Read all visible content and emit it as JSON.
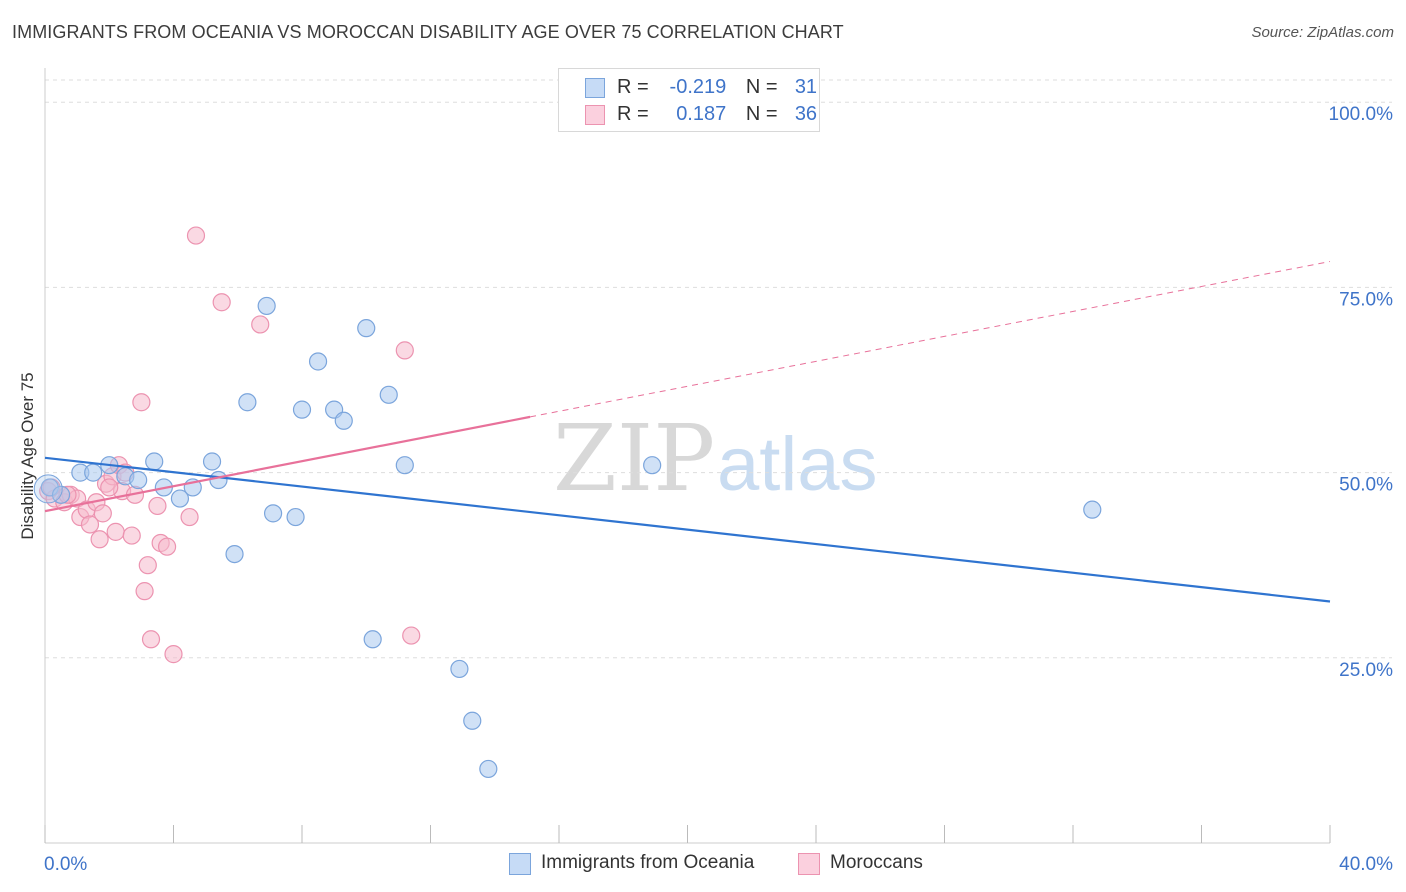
{
  "header": {
    "title": "IMMIGRANTS FROM OCEANIA VS MOROCCAN DISABILITY AGE OVER 75 CORRELATION CHART",
    "source": "Source: ZipAtlas.com"
  },
  "watermark": {
    "part1": "ZIP",
    "part2": "atlas"
  },
  "legend": {
    "rows": [
      {
        "r_label": "R =",
        "r_value": "-0.219",
        "n_label": "N =",
        "n_value": "31"
      },
      {
        "r_label": "R =",
        "r_value": " 0.187",
        "n_label": "N =",
        "n_value": "36"
      }
    ]
  },
  "bottom_legend": {
    "series1": "Immigrants from Oceania",
    "series2": "Moroccans"
  },
  "colors": {
    "series1_fill": "#a9c8ee",
    "series1_stroke": "#7ba5dc",
    "series1_line": "#2f74d0",
    "series2_fill": "#f6b9cc",
    "series2_stroke": "#ec93b0",
    "series2_line": "#e8719a",
    "grid": "#dddddd",
    "tick_label": "#3f74c9"
  },
  "chart_data": {
    "type": "scatter",
    "title": "IMMIGRANTS FROM OCEANIA VS MOROCCAN DISABILITY AGE OVER 75 CORRELATION CHART",
    "xlabel": "",
    "ylabel": "Disability Age Over 75",
    "xlim": [
      0,
      40
    ],
    "ylim": [
      0,
      103
    ],
    "x_tick_labels": [
      "0.0%",
      "40.0%"
    ],
    "y_ticks": [
      25,
      50,
      75,
      100
    ],
    "y_tick_labels": [
      "25.0%",
      "50.0%",
      "75.0%",
      "100.0%"
    ],
    "grid": true,
    "legend_position": "top-center",
    "series": [
      {
        "name": "Immigrants from Oceania",
        "r": -0.219,
        "n": 31,
        "trend": {
          "x": [
            0,
            40
          ],
          "y": [
            52.0,
            32.6
          ],
          "dashed_after": null
        },
        "points": [
          [
            0.15,
            48.0
          ],
          [
            0.5,
            47.0
          ],
          [
            1.1,
            50.0
          ],
          [
            1.5,
            50.0
          ],
          [
            2.0,
            51.0
          ],
          [
            2.5,
            49.5
          ],
          [
            2.9,
            49.0
          ],
          [
            3.4,
            51.5
          ],
          [
            3.7,
            48.0
          ],
          [
            4.2,
            46.5
          ],
          [
            4.6,
            48.0
          ],
          [
            5.2,
            51.5
          ],
          [
            5.4,
            49.0
          ],
          [
            5.9,
            39.0
          ],
          [
            6.3,
            59.5
          ],
          [
            6.9,
            72.5
          ],
          [
            7.1,
            44.5
          ],
          [
            7.8,
            44.0
          ],
          [
            8.0,
            58.5
          ],
          [
            8.5,
            65.0
          ],
          [
            9.0,
            58.5
          ],
          [
            9.3,
            57.0
          ],
          [
            10.0,
            69.5
          ],
          [
            10.2,
            27.5
          ],
          [
            10.7,
            60.5
          ],
          [
            11.2,
            51.0
          ],
          [
            12.9,
            23.5
          ],
          [
            13.3,
            16.5
          ],
          [
            13.8,
            10.0
          ],
          [
            18.9,
            51.0
          ],
          [
            32.6,
            45.0
          ]
        ]
      },
      {
        "name": "Moroccans",
        "r": 0.187,
        "n": 36,
        "trend": {
          "x": [
            0,
            40
          ],
          "y": [
            44.8,
            78.5
          ],
          "solid_until_x": 15.1
        },
        "points": [
          [
            0.1,
            47.5
          ],
          [
            0.3,
            46.5
          ],
          [
            0.6,
            46.0
          ],
          [
            0.8,
            47.0
          ],
          [
            1.0,
            46.5
          ],
          [
            1.1,
            44.0
          ],
          [
            1.3,
            45.0
          ],
          [
            1.4,
            43.0
          ],
          [
            1.6,
            46.0
          ],
          [
            1.7,
            41.0
          ],
          [
            1.8,
            44.5
          ],
          [
            1.9,
            48.5
          ],
          [
            2.1,
            49.5
          ],
          [
            2.2,
            42.0
          ],
          [
            2.3,
            51.0
          ],
          [
            2.4,
            47.5
          ],
          [
            2.5,
            50.0
          ],
          [
            2.7,
            41.5
          ],
          [
            2.8,
            47.0
          ],
          [
            3.0,
            59.5
          ],
          [
            3.1,
            34.0
          ],
          [
            3.2,
            37.5
          ],
          [
            3.3,
            27.5
          ],
          [
            3.5,
            45.5
          ],
          [
            3.6,
            40.5
          ],
          [
            3.8,
            40.0
          ],
          [
            4.0,
            25.5
          ],
          [
            4.5,
            44.0
          ],
          [
            4.7,
            82.0
          ],
          [
            5.5,
            73.0
          ],
          [
            6.7,
            70.0
          ],
          [
            11.2,
            66.5
          ],
          [
            11.4,
            28.0
          ],
          [
            0.2,
            48.0
          ],
          [
            0.7,
            47.0
          ],
          [
            2.0,
            48.0
          ]
        ]
      }
    ]
  }
}
